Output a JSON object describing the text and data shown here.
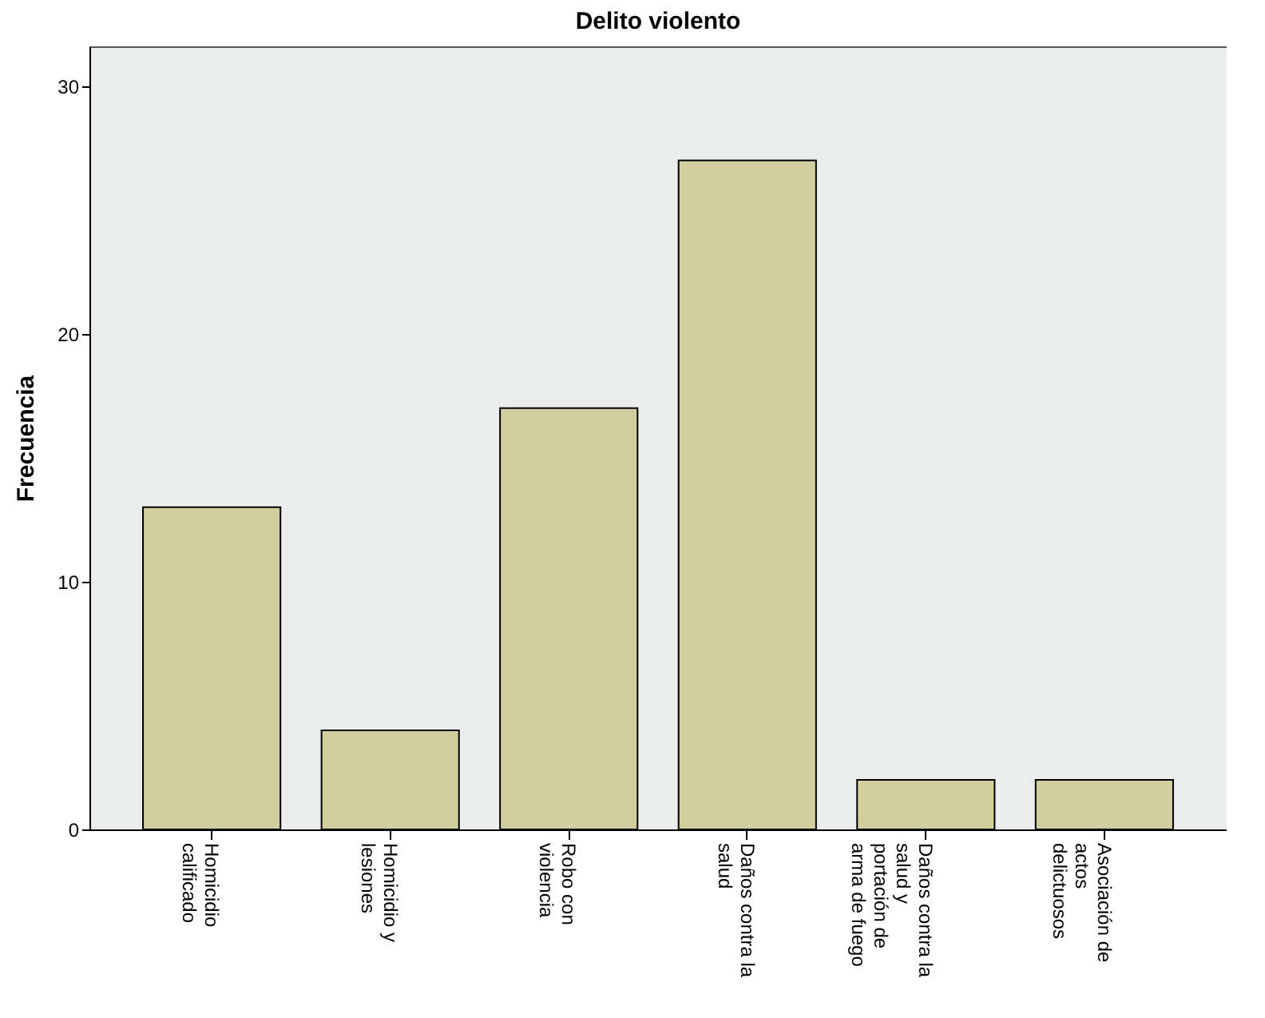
{
  "chart_data": {
    "type": "bar",
    "title": "Delito violento",
    "ylabel": "Frecuencia",
    "categories": [
      "Homicidio calificado",
      "Homicidio y lesiones",
      "Robo con violencia",
      "Daños contra la salud",
      "Daños contra la salud y portación de arma de fuego",
      "Asociación de actos delictuosos"
    ],
    "values": [
      13,
      4,
      17,
      27,
      2,
      2
    ],
    "color": "#d2cf9e",
    "ylim": [
      0,
      31.6
    ],
    "yticks": [
      0,
      10,
      20,
      30
    ],
    "grid": false
  }
}
